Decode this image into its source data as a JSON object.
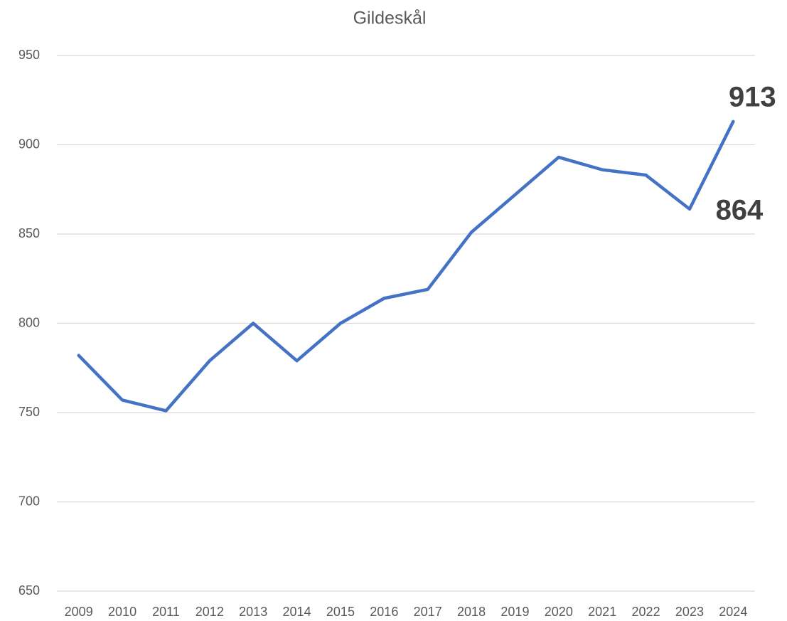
{
  "chart_data": {
    "type": "line",
    "title": "Gildeskål",
    "categories": [
      "2009",
      "2010",
      "2011",
      "2012",
      "2013",
      "2014",
      "2015",
      "2016",
      "2017",
      "2018",
      "2019",
      "2020",
      "2021",
      "2022",
      "2023",
      "2024"
    ],
    "series": [
      {
        "name": "Gildeskål",
        "color": "#4472c4",
        "values": [
          782,
          757,
          751,
          779,
          800,
          779,
          800,
          814,
          819,
          851,
          872,
          893,
          886,
          883,
          864,
          913
        ],
        "value_labels": [
          null,
          null,
          null,
          null,
          null,
          null,
          null,
          null,
          null,
          null,
          null,
          null,
          null,
          null,
          "864",
          "913"
        ]
      }
    ],
    "ylim": [
      650,
      950
    ],
    "yticks": [
      650,
      700,
      750,
      800,
      850,
      900,
      950
    ],
    "grid": true
  }
}
